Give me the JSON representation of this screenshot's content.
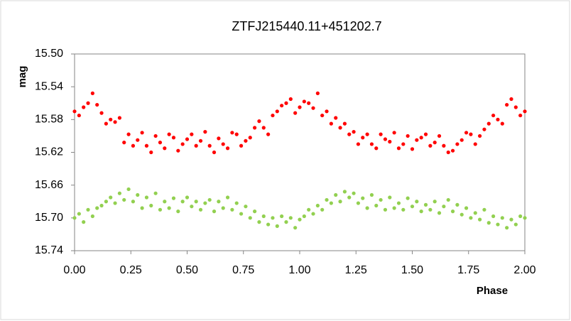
{
  "chart_data": {
    "type": "scatter",
    "title": "ZTFJ215440.11+451202.7",
    "x_label": "Phase",
    "y_label": "mag",
    "xlim": [
      0,
      2
    ],
    "ylim": [
      15.5,
      15.74
    ],
    "y_inverted": true,
    "grid": false,
    "xticks": [
      {
        "value": 0,
        "label": "0.00"
      },
      {
        "value": 0.25,
        "label": "0.25"
      },
      {
        "value": 0.5,
        "label": "0.50"
      },
      {
        "value": 0.75,
        "label": "0.75"
      },
      {
        "value": 1,
        "label": "1.00"
      },
      {
        "value": 1.25,
        "label": "1.25"
      },
      {
        "value": 1.5,
        "label": "1.50"
      },
      {
        "value": 1.75,
        "label": "1.75"
      },
      {
        "value": 2,
        "label": "2.00"
      }
    ],
    "yticks": [
      {
        "value": 15.5,
        "label": "15.50"
      },
      {
        "value": 15.54,
        "label": "15.54"
      },
      {
        "value": 15.58,
        "label": "15.58"
      },
      {
        "value": 15.62,
        "label": "15.62"
      },
      {
        "value": 15.66,
        "label": "15.66"
      },
      {
        "value": 15.7,
        "label": "15.70"
      },
      {
        "value": 15.74,
        "label": "15.74"
      }
    ],
    "x": [
      0,
      0.02,
      0.04,
      0.06,
      0.08,
      0.1,
      0.12,
      0.14,
      0.16,
      0.18,
      0.2,
      0.22,
      0.24,
      0.26,
      0.28,
      0.3,
      0.32,
      0.34,
      0.36,
      0.38,
      0.4,
      0.42,
      0.44,
      0.46,
      0.48,
      0.5,
      0.52,
      0.54,
      0.56,
      0.58,
      0.6,
      0.62,
      0.64,
      0.66,
      0.68,
      0.7,
      0.72,
      0.74,
      0.76,
      0.78,
      0.8,
      0.82,
      0.84,
      0.86,
      0.88,
      0.9,
      0.92,
      0.94,
      0.96,
      0.98,
      1,
      1.02,
      1.04,
      1.06,
      1.08,
      1.1,
      1.12,
      1.14,
      1.16,
      1.18,
      1.2,
      1.22,
      1.24,
      1.26,
      1.28,
      1.3,
      1.32,
      1.34,
      1.36,
      1.38,
      1.4,
      1.42,
      1.44,
      1.46,
      1.48,
      1.5,
      1.52,
      1.54,
      1.56,
      1.58,
      1.6,
      1.62,
      1.64,
      1.66,
      1.68,
      1.7,
      1.72,
      1.74,
      1.76,
      1.78,
      1.8,
      1.82,
      1.84,
      1.86,
      1.88,
      1.9,
      1.92,
      1.94,
      1.96,
      1.98,
      2
    ],
    "series": [
      {
        "color": "#ff0000",
        "values": [
          15.57,
          15.575,
          15.565,
          15.56,
          15.548,
          15.562,
          15.572,
          15.585,
          15.58,
          15.583,
          15.578,
          15.608,
          15.598,
          15.612,
          15.605,
          15.596,
          15.612,
          15.62,
          15.6,
          15.608,
          15.615,
          15.598,
          15.602,
          15.618,
          15.61,
          15.604,
          15.598,
          15.612,
          15.606,
          15.595,
          15.612,
          15.62,
          15.603,
          15.61,
          15.615,
          15.596,
          15.598,
          15.612,
          15.606,
          15.602,
          15.59,
          15.582,
          15.59,
          15.598,
          15.575,
          15.57,
          15.563,
          15.56,
          15.555,
          15.572,
          15.565,
          15.558,
          15.56,
          15.566,
          15.548,
          15.575,
          15.57,
          15.585,
          15.578,
          15.59,
          15.585,
          15.598,
          15.595,
          15.61,
          15.602,
          15.598,
          15.61,
          15.615,
          15.598,
          15.604,
          15.607,
          15.596,
          15.615,
          15.61,
          15.6,
          15.616,
          15.605,
          15.602,
          15.598,
          15.612,
          15.608,
          15.6,
          15.612,
          15.62,
          15.618,
          15.61,
          15.605,
          15.596,
          15.598,
          15.61,
          15.6,
          15.592,
          15.585,
          15.575,
          15.58,
          15.585,
          15.562,
          15.555,
          15.565,
          15.575,
          15.57
        ]
      },
      {
        "color": "#92d050",
        "values": [
          15.7,
          15.695,
          15.705,
          15.69,
          15.698,
          15.688,
          15.685,
          15.68,
          15.675,
          15.682,
          15.67,
          15.678,
          15.665,
          15.68,
          15.672,
          15.688,
          15.675,
          15.685,
          15.67,
          15.69,
          15.68,
          15.688,
          15.676,
          15.692,
          15.68,
          15.675,
          15.686,
          15.68,
          15.69,
          15.682,
          15.678,
          15.692,
          15.68,
          15.688,
          15.675,
          15.69,
          15.682,
          15.695,
          15.686,
          15.7,
          15.692,
          15.705,
          15.698,
          15.708,
          15.7,
          15.71,
          15.698,
          15.705,
          15.7,
          15.712,
          15.702,
          15.698,
          15.69,
          15.695,
          15.685,
          15.69,
          15.678,
          15.682,
          15.672,
          15.68,
          15.668,
          15.675,
          15.67,
          15.682,
          15.676,
          15.688,
          15.672,
          15.685,
          15.678,
          15.69,
          15.675,
          15.688,
          15.682,
          15.69,
          15.676,
          15.686,
          15.68,
          15.692,
          15.684,
          15.69,
          15.68,
          15.694,
          15.686,
          15.678,
          15.692,
          15.684,
          15.696,
          15.688,
          15.7,
          15.694,
          15.702,
          15.69,
          15.706,
          15.698,
          15.708,
          15.7,
          15.712,
          15.702,
          15.708,
          15.698,
          15.7
        ]
      }
    ]
  }
}
